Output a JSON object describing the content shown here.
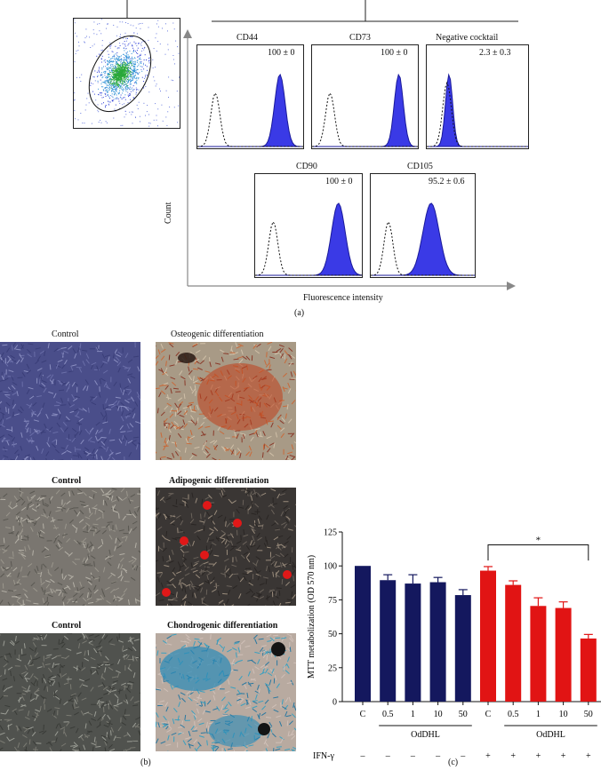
{
  "panel_a": {
    "label": "(a)",
    "y_axis_label": "Count",
    "x_axis_label": "Fluorescence intensity",
    "histograms": [
      {
        "marker": "CD44",
        "value": "100 ± 0"
      },
      {
        "marker": "CD73",
        "value": "100 ± 0"
      },
      {
        "marker": "Negative cocktail",
        "value": "2.3 ± 0.3"
      },
      {
        "marker": "CD90",
        "value": "100 ± 0"
      },
      {
        "marker": "CD105",
        "value": "95.2 ± 0.6"
      }
    ]
  },
  "panel_b": {
    "label": "(b)",
    "rows": [
      {
        "control": "Control",
        "treated": "Osteogenic differentiation"
      },
      {
        "control": "Control",
        "treated": "Adipogenic differentiation"
      },
      {
        "control": "Control",
        "treated": "Chondrogenic differentiation"
      }
    ]
  },
  "panel_c": {
    "label": "(c)",
    "ifn_label": "IFN-γ",
    "group_label": "OdDHL",
    "significance": "*",
    "chart_data": {
      "type": "bar",
      "ylabel": "MTT metabolization (OD 570 nm)",
      "ylim": [
        0,
        125
      ],
      "yticks": [
        "0",
        "25",
        "50",
        "75",
        "100",
        "125"
      ],
      "categories": [
        "C",
        "0.5",
        "1",
        "10",
        "50",
        "C",
        "0.5",
        "1",
        "10",
        "50"
      ],
      "ifn": [
        "–",
        "–",
        "–",
        "–",
        "–",
        "+",
        "+",
        "+",
        "+",
        "+"
      ],
      "series": [
        {
          "values": [
            100,
            89.5,
            87,
            88,
            78.5,
            null,
            null,
            null,
            null,
            null
          ],
          "errors": [
            0,
            4,
            6.5,
            3.5,
            4,
            null,
            null,
            null,
            null,
            null
          ],
          "color": "#14185e"
        },
        {
          "values": [
            null,
            null,
            null,
            null,
            null,
            96.5,
            86,
            70.5,
            69,
            46.5
          ],
          "errors": [
            null,
            null,
            null,
            null,
            null,
            3,
            3,
            6,
            4.5,
            3
          ],
          "color": "#e11414"
        }
      ]
    }
  }
}
